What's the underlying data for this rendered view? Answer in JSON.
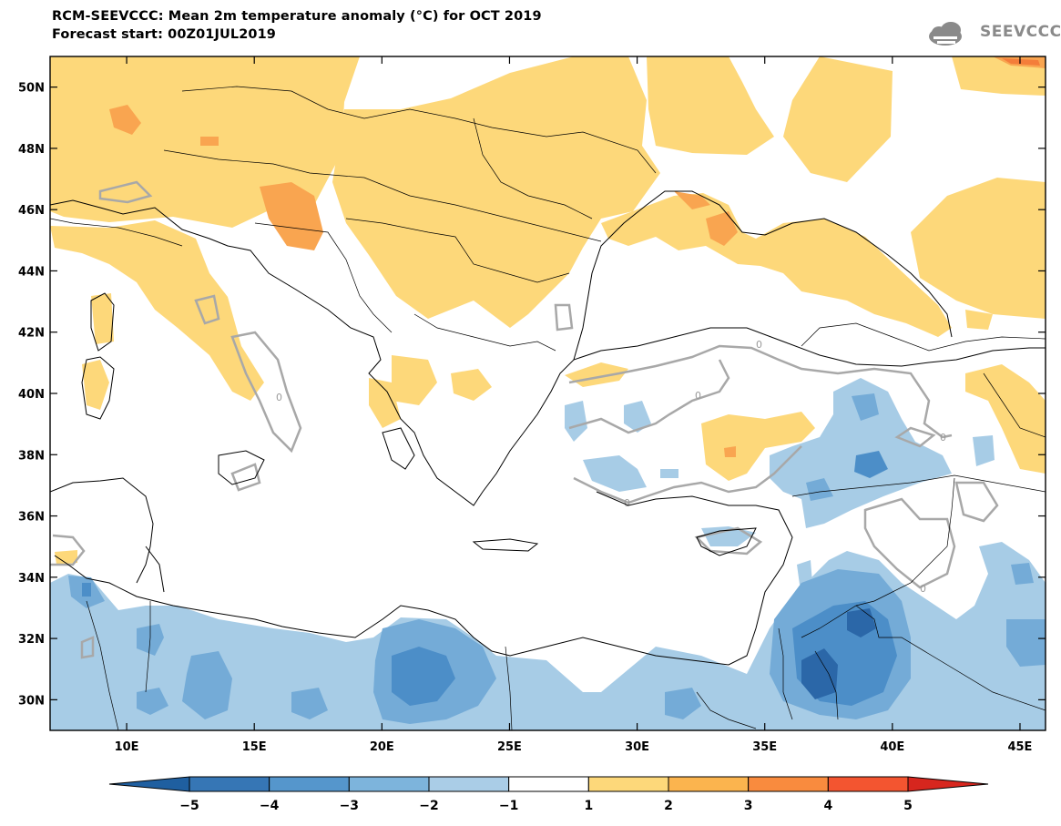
{
  "title_line1": "RCM-SEEVCCC: Mean 2m temperature anomaly (°C) for OCT 2019",
  "title_line2": "Forecast start: 00Z01JUL2019",
  "logo": {
    "text": "SEEVCCC",
    "icon": "cloud-icon"
  },
  "map": {
    "lon_range": [
      7,
      46
    ],
    "lat_range": [
      29,
      51
    ],
    "lon_ticks": [
      "10E",
      "15E",
      "20E",
      "25E",
      "30E",
      "35E",
      "40E",
      "45E"
    ],
    "lat_ticks": [
      "50N",
      "48N",
      "46N",
      "44N",
      "42N",
      "40N",
      "38N",
      "36N",
      "34N",
      "32N",
      "30N"
    ],
    "contour_label": "0"
  },
  "colorbar": {
    "labels": [
      "−5",
      "−4",
      "−3",
      "−2",
      "−1",
      "1",
      "2",
      "3",
      "4",
      "5"
    ],
    "colors": [
      "#1f5fa0",
      "#3676b5",
      "#5596cc",
      "#7db4dc",
      "#aacde7",
      "#ffffff",
      "#fdd87a",
      "#fbb44e",
      "#f98b3e",
      "#f35530",
      "#d7261e"
    ]
  },
  "colors": {
    "warm1": "#fdd87a",
    "warm2": "#f9a550",
    "warm3": "#f47d3a",
    "cold1": "#a7cce6",
    "cold2": "#74abd7",
    "cold3": "#4c8ec8",
    "cold4": "#2b67a8",
    "contour": "#a8a8a8"
  }
}
